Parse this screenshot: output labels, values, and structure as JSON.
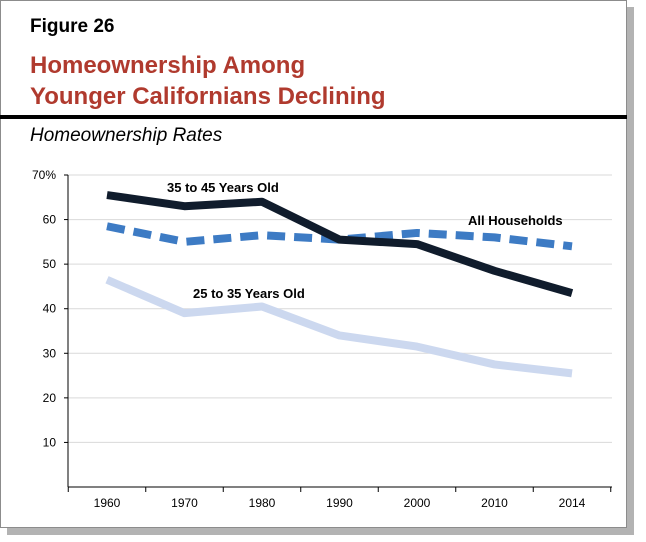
{
  "figure_label": "Figure 26",
  "title_line1": "Homeownership Among",
  "title_line2": "Younger Californians Declining",
  "chart_data": {
    "type": "line",
    "title": "Homeownership Rates",
    "xlabel": "",
    "ylabel": "",
    "x": [
      "1960",
      "1970",
      "1980",
      "1990",
      "2000",
      "2010",
      "2014"
    ],
    "ylim": [
      0,
      70
    ],
    "yticks": [
      10,
      20,
      30,
      40,
      50,
      60,
      70
    ],
    "ytick_labels": [
      "10",
      "20",
      "30",
      "40",
      "50",
      "60",
      "70%"
    ],
    "grid": true,
    "series": [
      {
        "name": "35 to 45 Years Old",
        "values": [
          65.5,
          63,
          64,
          55.5,
          54.5,
          48.5,
          43.5
        ],
        "color": "#101c2c",
        "style": "solid"
      },
      {
        "name": "All Households",
        "values": [
          58.5,
          55,
          56.5,
          55.5,
          57,
          56,
          54
        ],
        "color": "#3d7bc4",
        "style": "dashed"
      },
      {
        "name": "25 to 35 Years Old",
        "values": [
          46.5,
          39,
          40.5,
          34,
          31.5,
          27.5,
          25.5
        ],
        "color": "#ccd8ef",
        "style": "solid"
      }
    ]
  }
}
